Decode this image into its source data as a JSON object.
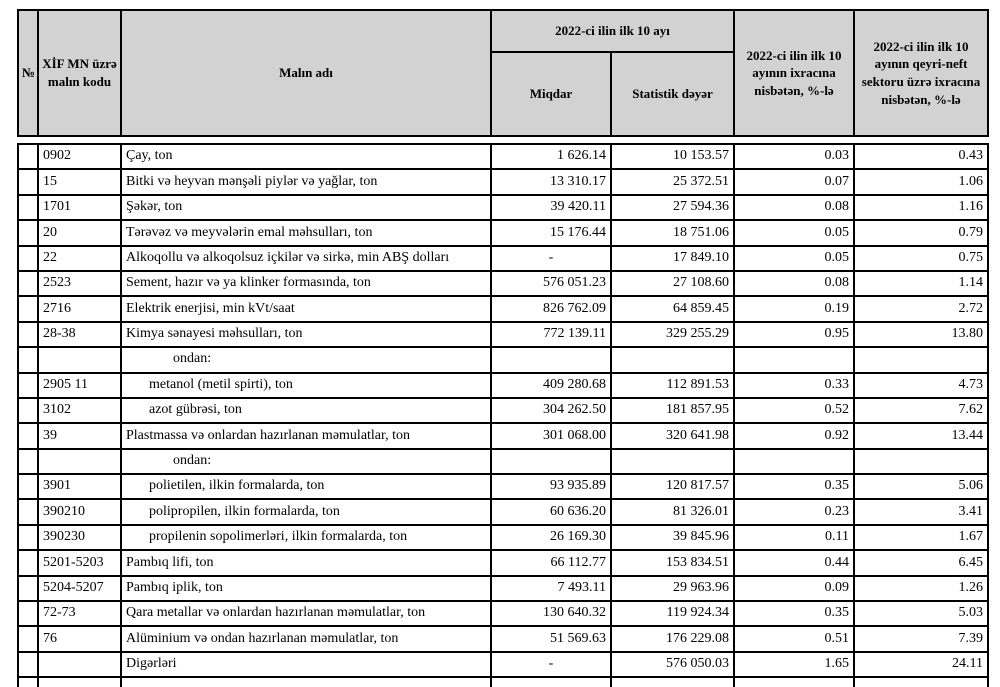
{
  "header": {
    "no": "№",
    "code": "XİF MN üzrə malın kodu",
    "name": "Malın adı",
    "period_group": "2022-ci ilin ilk 10 ayı",
    "quantity": "Miqdar",
    "stat_value": "Statistik dəyər",
    "share_export": "2022-ci ilin ilk 10 ayının ixracına nisbətən, %-lə",
    "share_nonoil": "2022-ci ilin ilk 10 ayının qeyri-neft sektoru üzrə ixracına nisbətən, %-lə"
  },
  "colors": {
    "header_bg": "#d2d2d2",
    "border": "#000000"
  },
  "rows": [
    {
      "code": "0902",
      "name": "Çay, ton",
      "qty": "1 626.14",
      "value": "10 153.57",
      "share": "0.03",
      "nonoil": "0.43",
      "indent": 0
    },
    {
      "code": "15",
      "name": "Bitki və heyvan mənşəli piylər və yağlar, ton",
      "qty": "13 310.17",
      "value": "25 372.51",
      "share": "0.07",
      "nonoil": "1.06",
      "indent": 0
    },
    {
      "code": "1701",
      "name": "Şəkər, ton",
      "qty": "39 420.11",
      "value": "27 594.36",
      "share": "0.08",
      "nonoil": "1.16",
      "indent": 0
    },
    {
      "code": "20",
      "name": "Tərəvəz və meyvələrin emal məhsulları, ton",
      "qty": "15 176.44",
      "value": "18 751.06",
      "share": "0.05",
      "nonoil": "0.79",
      "indent": 0
    },
    {
      "code": "22",
      "name": "Alkoqollu və alkoqolsuz içkilər və sirkə, min ABŞ dolları",
      "qty": "-",
      "value": "17 849.10",
      "share": "0.05",
      "nonoil": "0.75",
      "indent": 0
    },
    {
      "code": "2523",
      "name": "Sement, hazır və ya klinker formasında, ton",
      "qty": "576 051.23",
      "value": "27 108.60",
      "share": "0.08",
      "nonoil": "1.14",
      "indent": 0
    },
    {
      "code": "2716",
      "name": "Elektrik enerjisi, min kVt/saat",
      "qty": "826 762.09",
      "value": "64 859.45",
      "share": "0.19",
      "nonoil": "2.72",
      "indent": 0
    },
    {
      "code": "28-38",
      "name": "Kimya sənayesi məhsulları, ton",
      "qty": "772 139.11",
      "value": "329 255.29",
      "share": "0.95",
      "nonoil": "13.80",
      "indent": 0
    },
    {
      "code": "",
      "name": "ondan:",
      "qty": "",
      "value": "",
      "share": "",
      "nonoil": "",
      "indent": 2
    },
    {
      "code": "2905 11",
      "name": "metanol (metil spirti), ton",
      "qty": "409 280.68",
      "value": "112 891.53",
      "share": "0.33",
      "nonoil": "4.73",
      "indent": 1
    },
    {
      "code": "3102",
      "name": "azot gübrəsi, ton",
      "qty": "304 262.50",
      "value": "181 857.95",
      "share": "0.52",
      "nonoil": "7.62",
      "indent": 1
    },
    {
      "code": "39",
      "name": "Plastmassa və onlardan hazırlanan məmulatlar, ton",
      "qty": "301 068.00",
      "value": "320 641.98",
      "share": "0.92",
      "nonoil": "13.44",
      "indent": 0
    },
    {
      "code": "",
      "name": "ondan:",
      "qty": "",
      "value": "",
      "share": "",
      "nonoil": "",
      "indent": 2
    },
    {
      "code": "3901",
      "name": "polietilen, ilkin formalarda, ton",
      "qty": "93 935.89",
      "value": "120 817.57",
      "share": "0.35",
      "nonoil": "5.06",
      "indent": 1
    },
    {
      "code": "390210",
      "name": "polipropilen, ilkin formalarda, ton",
      "qty": "60 636.20",
      "value": "81 326.01",
      "share": "0.23",
      "nonoil": "3.41",
      "indent": 1
    },
    {
      "code": "390230",
      "name": "propilenin sopolimerləri, ilkin formalarda, ton",
      "qty": "26 169.30",
      "value": "39 845.96",
      "share": "0.11",
      "nonoil": "1.67",
      "indent": 1
    },
    {
      "code": "5201-5203",
      "name": "Pambıq lifi, ton",
      "qty": "66 112.77",
      "value": "153 834.51",
      "share": "0.44",
      "nonoil": "6.45",
      "indent": 0
    },
    {
      "code": "5204-5207",
      "name": "Pambıq iplik, ton",
      "qty": "7 493.11",
      "value": "29 963.96",
      "share": "0.09",
      "nonoil": "1.26",
      "indent": 0
    },
    {
      "code": "72-73",
      "name": "Qara metallar və onlardan hazırlanan məmulatlar, ton",
      "qty": "130 640.32",
      "value": "119 924.34",
      "share": "0.35",
      "nonoil": "5.03",
      "indent": 0
    },
    {
      "code": "76",
      "name": "Alüminium və ondan hazırlanan məmulatlar, ton",
      "qty": "51 569.63",
      "value": "176 229.08",
      "share": "0.51",
      "nonoil": "7.39",
      "indent": 0
    },
    {
      "code": "",
      "name": "Digərləri",
      "qty": "-",
      "value": "576 050.03",
      "share": "1.65",
      "nonoil": "24.11",
      "indent": 0
    }
  ]
}
